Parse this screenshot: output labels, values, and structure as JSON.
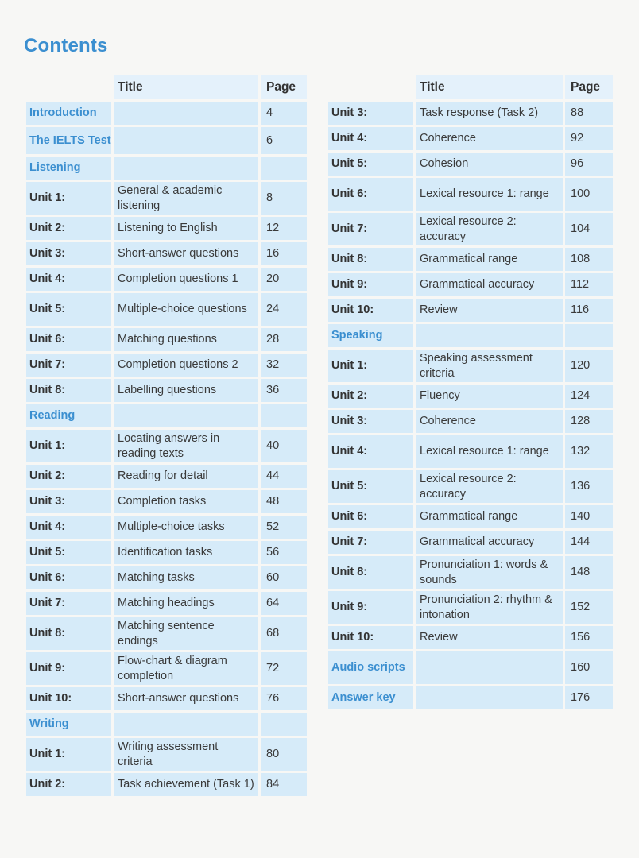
{
  "page": {
    "title": "Contents"
  },
  "headers": {
    "title": "Title",
    "page": "Page"
  },
  "left_column": [
    {
      "type": "section",
      "label": "Introduction",
      "title": "",
      "page": "4"
    },
    {
      "type": "section",
      "label": "The IELTS Test",
      "title": "",
      "page": "6"
    },
    {
      "type": "section",
      "label": "Listening",
      "title": "",
      "page": ""
    },
    {
      "type": "unit",
      "label": "Unit 1:",
      "title": "General & academic listening",
      "page": "8"
    },
    {
      "type": "unit",
      "label": "Unit 2:",
      "title": "Listening to English",
      "page": "12"
    },
    {
      "type": "unit",
      "label": "Unit 3:",
      "title": "Short-answer questions",
      "page": "16"
    },
    {
      "type": "unit",
      "label": "Unit 4:",
      "title": "Completion questions 1",
      "page": "20"
    },
    {
      "type": "unit",
      "label": "Unit 5:",
      "title": "Multiple-choice questions",
      "page": "24"
    },
    {
      "type": "unit",
      "label": "Unit 6:",
      "title": "Matching questions",
      "page": "28"
    },
    {
      "type": "unit",
      "label": "Unit 7:",
      "title": "Completion questions 2",
      "page": "32"
    },
    {
      "type": "unit",
      "label": "Unit 8:",
      "title": "Labelling questions",
      "page": "36"
    },
    {
      "type": "section",
      "label": "Reading",
      "title": "",
      "page": ""
    },
    {
      "type": "unit",
      "label": "Unit 1:",
      "title": "Locating answers in reading texts",
      "page": "40"
    },
    {
      "type": "unit",
      "label": "Unit 2:",
      "title": "Reading for detail",
      "page": "44"
    },
    {
      "type": "unit",
      "label": "Unit 3:",
      "title": "Completion tasks",
      "page": "48"
    },
    {
      "type": "unit",
      "label": "Unit 4:",
      "title": "Multiple-choice tasks",
      "page": "52"
    },
    {
      "type": "unit",
      "label": "Unit 5:",
      "title": "Identification tasks",
      "page": "56"
    },
    {
      "type": "unit",
      "label": "Unit 6:",
      "title": "Matching tasks",
      "page": "60"
    },
    {
      "type": "unit",
      "label": "Unit 7:",
      "title": "Matching headings",
      "page": "64"
    },
    {
      "type": "unit",
      "label": "Unit 8:",
      "title": "Matching sentence endings",
      "page": "68"
    },
    {
      "type": "unit",
      "label": "Unit 9:",
      "title": "Flow-chart & diagram completion",
      "page": "72"
    },
    {
      "type": "unit",
      "label": "Unit 10:",
      "title": "Short-answer questions",
      "page": "76"
    },
    {
      "type": "section",
      "label": "Writing",
      "title": "",
      "page": ""
    },
    {
      "type": "unit",
      "label": "Unit 1:",
      "title": "Writing assessment criteria",
      "page": "80"
    },
    {
      "type": "unit",
      "label": "Unit 2:",
      "title": "Task achievement (Task 1)",
      "page": "84"
    }
  ],
  "right_column": [
    {
      "type": "unit",
      "label": "Unit 3:",
      "title": "Task response (Task 2)",
      "page": "88"
    },
    {
      "type": "unit",
      "label": "Unit 4:",
      "title": "Coherence",
      "page": "92"
    },
    {
      "type": "unit",
      "label": "Unit 5:",
      "title": "Cohesion",
      "page": "96"
    },
    {
      "type": "unit",
      "label": "Unit 6:",
      "title": "Lexical resource 1: range",
      "page": "100"
    },
    {
      "type": "unit",
      "label": "Unit 7:",
      "title": "Lexical resource 2: accuracy",
      "page": "104"
    },
    {
      "type": "unit",
      "label": "Unit 8:",
      "title": "Grammatical range",
      "page": "108"
    },
    {
      "type": "unit",
      "label": "Unit 9:",
      "title": "Grammatical accuracy",
      "page": "112"
    },
    {
      "type": "unit",
      "label": "Unit 10:",
      "title": "Review",
      "page": "116"
    },
    {
      "type": "section",
      "label": "Speaking",
      "title": "",
      "page": ""
    },
    {
      "type": "unit",
      "label": "Unit 1:",
      "title": "Speaking assessment criteria",
      "page": "120"
    },
    {
      "type": "unit",
      "label": "Unit 2:",
      "title": "Fluency",
      "page": "124"
    },
    {
      "type": "unit",
      "label": "Unit 3:",
      "title": "Coherence",
      "page": "128"
    },
    {
      "type": "unit",
      "label": "Unit 4:",
      "title": "Lexical resource 1: range",
      "page": "132"
    },
    {
      "type": "unit",
      "label": "Unit 5:",
      "title": "Lexical resource 2: accuracy",
      "page": "136"
    },
    {
      "type": "unit",
      "label": "Unit 6:",
      "title": "Grammatical range",
      "page": "140"
    },
    {
      "type": "unit",
      "label": "Unit 7:",
      "title": "Grammatical accuracy",
      "page": "144"
    },
    {
      "type": "unit",
      "label": "Unit 8:",
      "title": "Pronunciation 1: words & sounds",
      "page": "148"
    },
    {
      "type": "unit",
      "label": "Unit 9:",
      "title": "Pronunciation 2: rhythm & intonation",
      "page": "152"
    },
    {
      "type": "unit",
      "label": "Unit 10:",
      "title": "Review",
      "page": "156"
    },
    {
      "type": "section",
      "label": "Audio scripts",
      "title": "",
      "page": "160"
    },
    {
      "type": "section",
      "label": "Answer key",
      "title": "",
      "page": "176"
    }
  ],
  "colors": {
    "accent": "#3b8fd0",
    "cell_bg": "#d6ebf9",
    "page_bg": "#f7f7f5"
  }
}
